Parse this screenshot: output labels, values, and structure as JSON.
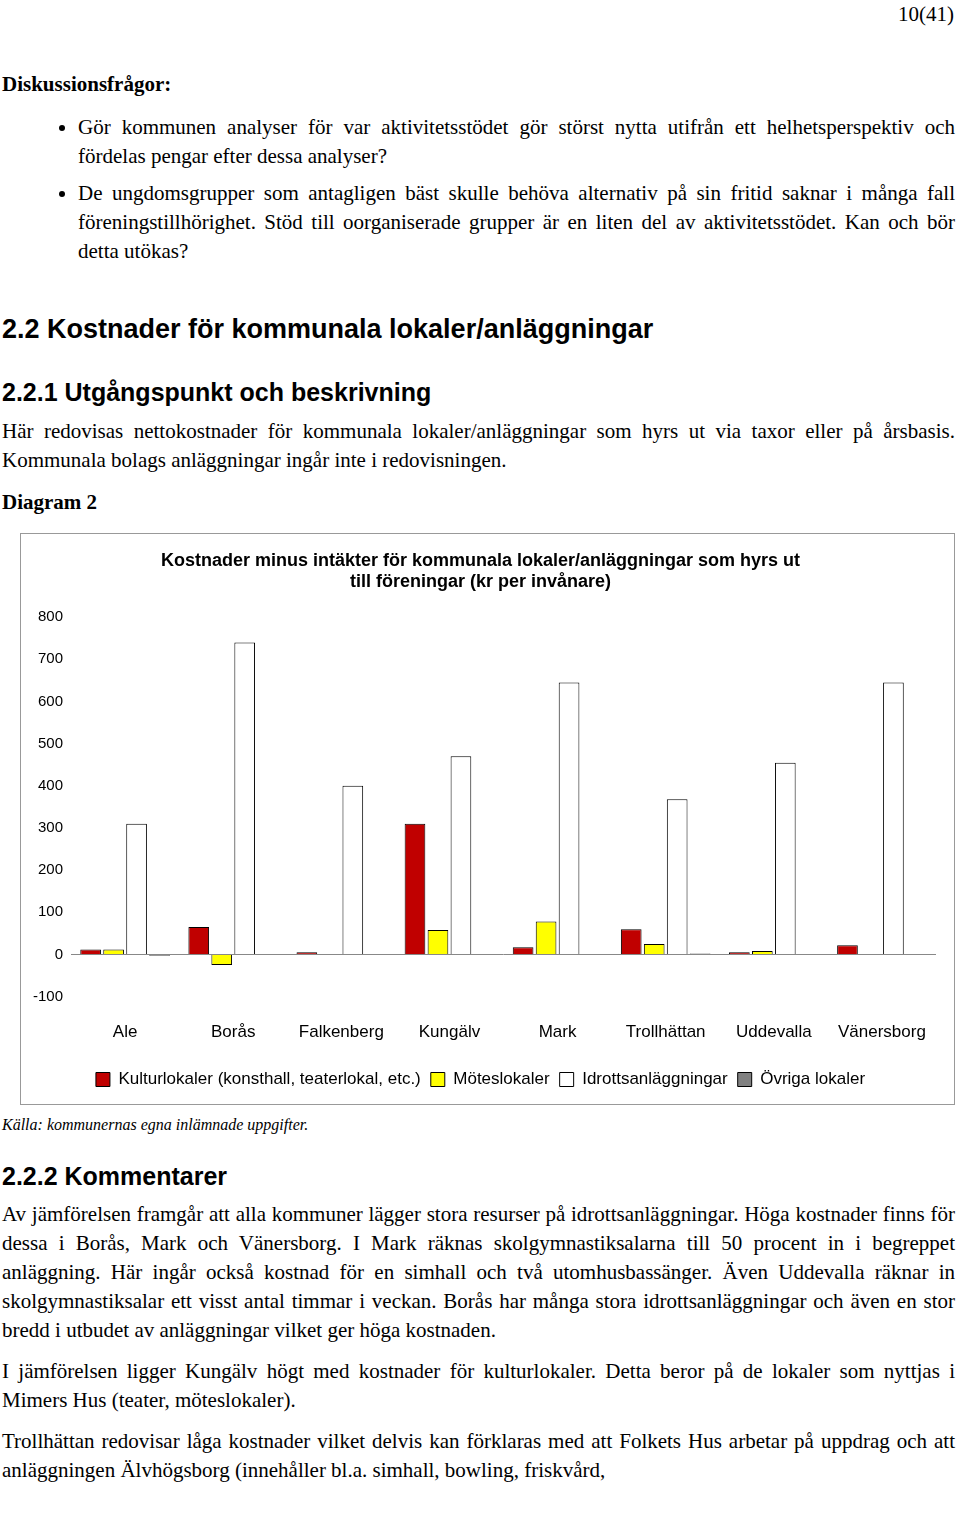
{
  "page_number": "10(41)",
  "discussion": {
    "heading": "Diskussionsfrågor:",
    "bullets": [
      "Gör kommunen analyser för var aktivitetsstödet gör störst nytta utifrån ett helhetsperspektiv och fördelas pengar efter dessa analyser?",
      "De ungdomsgrupper som antagligen bäst skulle behöva alternativ på sin fritid saknar i många fall föreningstillhörighet. Stöd till oorganiserade grupper är en liten del av aktivitetsstödet. Kan och bör detta utökas?"
    ]
  },
  "section_heading": "2.2 Kostnader för kommunala lokaler/anläggningar",
  "subsection1": {
    "heading": "2.2.1 Utgångspunkt och beskrivning",
    "paragraphs": [
      "Här redovisas nettokostnader för kommunala lokaler/anläggningar som hyrs ut via taxor eller på årsbasis. Kommunala bolags anläggningar ingår inte i redovisningen."
    ]
  },
  "diagram_label": "Diagram 2",
  "chart_data": {
    "type": "bar",
    "title": [
      "Kostnader minus intäkter för kommunala lokaler/anläggningar som hyrs ut",
      "till föreningar (kr per invånare)"
    ],
    "categories": [
      "Ale",
      "Borås",
      "Falkenberg",
      "Kungälv",
      "Mark",
      "Trollhättan",
      "Uddevalla",
      "Vänersborg"
    ],
    "series": [
      {
        "name": "Kulturlokaler (konsthall, teaterlokal, etc.)",
        "color": "#c00000",
        "values": [
          12,
          65,
          5,
          310,
          17,
          60,
          5,
          22
        ]
      },
      {
        "name": "Möteslokaler",
        "color": "#ffff00",
        "values": [
          12,
          -25,
          0,
          58,
          78,
          25,
          8,
          0
        ]
      },
      {
        "name": "Idrottsanläggningar",
        "color": "#ffffff",
        "values": [
          310,
          740,
          400,
          470,
          645,
          368,
          455,
          645
        ]
      },
      {
        "name": "Övriga lokaler",
        "color": "#808080",
        "values": [
          -3,
          0,
          0,
          0,
          0,
          2,
          0,
          0
        ]
      }
    ],
    "ylim": [
      -100,
      800
    ],
    "yticks": [
      -100,
      0,
      100,
      200,
      300,
      400,
      500,
      600,
      700,
      800
    ],
    "grid": false,
    "legend": "bottom"
  },
  "source": "Källa: kommunernas egna inlämnade uppgifter.",
  "subsection2": {
    "heading": "2.2.2 Kommentarer",
    "paragraphs": [
      "Av jämförelsen framgår att alla kommuner lägger stora resurser på idrottsanläggningar. Höga kostnader finns för dessa i Borås, Mark och Vänersborg. I Mark räknas skolgymnastiksalarna till 50 procent in i begreppet anläggning. Här ingår också kostnad för en simhall och två utomhusbassänger. Även Uddevalla räknar in skolgymnastiksalar ett visst antal timmar i veckan. Borås har många stora idrottsanläggningar och även en stor bredd i utbudet av anläggningar vilket ger höga kostnaden.",
      "I jämförelsen ligger Kungälv högt med kostnader för kulturlokaler. Detta beror på de lokaler som nyttjas i Mimers Hus (teater, möteslokaler).",
      "Trollhättan redovisar låga kostnader vilket delvis kan förklaras med att Folkets Hus arbetar på uppdrag och att anläggningen Älvhögsborg (innehåller bl.a. simhall, bowling, friskvård,"
    ]
  }
}
